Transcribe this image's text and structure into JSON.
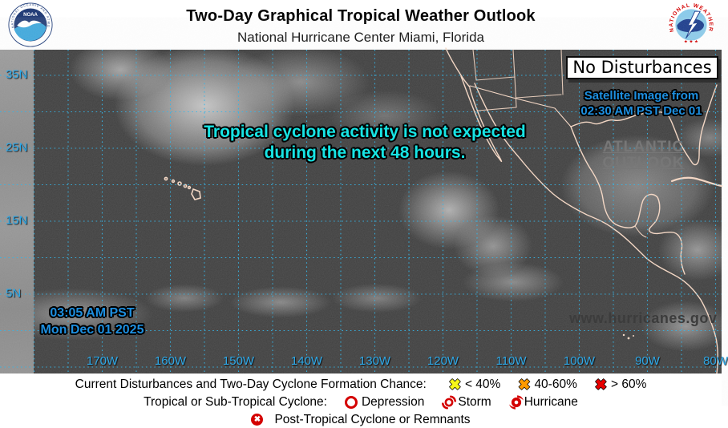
{
  "header": {
    "title": "Two-Day Graphical Tropical Weather Outlook",
    "subtitle": "National Hurricane Center  Miami, Florida",
    "noaa_text": "NOAA",
    "nws_arc_text": "NATIONAL WEATHER SERVICE"
  },
  "map": {
    "status_box": "No Disturbances",
    "satellite_note_line1": "Satellite Image from",
    "satellite_note_line2": "02:30 AM PST Dec 01",
    "atlantic_link_line1": "ATLANTIC",
    "atlantic_link_line2": "OUTLOOK",
    "message_line1": "Tropical cyclone activity is not expected",
    "message_line2": "during the next 48 hours.",
    "timestamp_line1": "03:05 AM PST",
    "timestamp_line2": "Mon Dec 01 2025",
    "watermark": "www.hurricanes.gov",
    "lat_labels": [
      "35N",
      "25N",
      "15N",
      "5N"
    ],
    "lon_labels": [
      "170W",
      "160W",
      "150W",
      "140W",
      "130W",
      "120W",
      "110W",
      "100W",
      "90W",
      "80W"
    ],
    "colors": {
      "grid": "#35b6e8",
      "coastline": "#f5d7c3",
      "message_text": "#17e4e4",
      "timestamp_text": "#1d8fe0",
      "ocean_dark": "#3f3f3f"
    }
  },
  "legend": {
    "row1_label": "Current Disturbances and Two-Day Cyclone Formation Chance:",
    "chance_items": [
      {
        "color": "#f7f719",
        "label": "< 40%"
      },
      {
        "color": "#ff9a00",
        "label": "40-60%"
      },
      {
        "color": "#e80000",
        "label": "> 60%"
      }
    ],
    "row2_label": "Tropical or Sub-Tropical Cyclone:",
    "cyclone_items": [
      {
        "label": "Depression"
      },
      {
        "label": "Storm"
      },
      {
        "label": "Hurricane"
      }
    ],
    "row3_label": "Post-Tropical Cyclone or Remnants",
    "post_symbol": "✖",
    "x_glyph": "✖"
  }
}
